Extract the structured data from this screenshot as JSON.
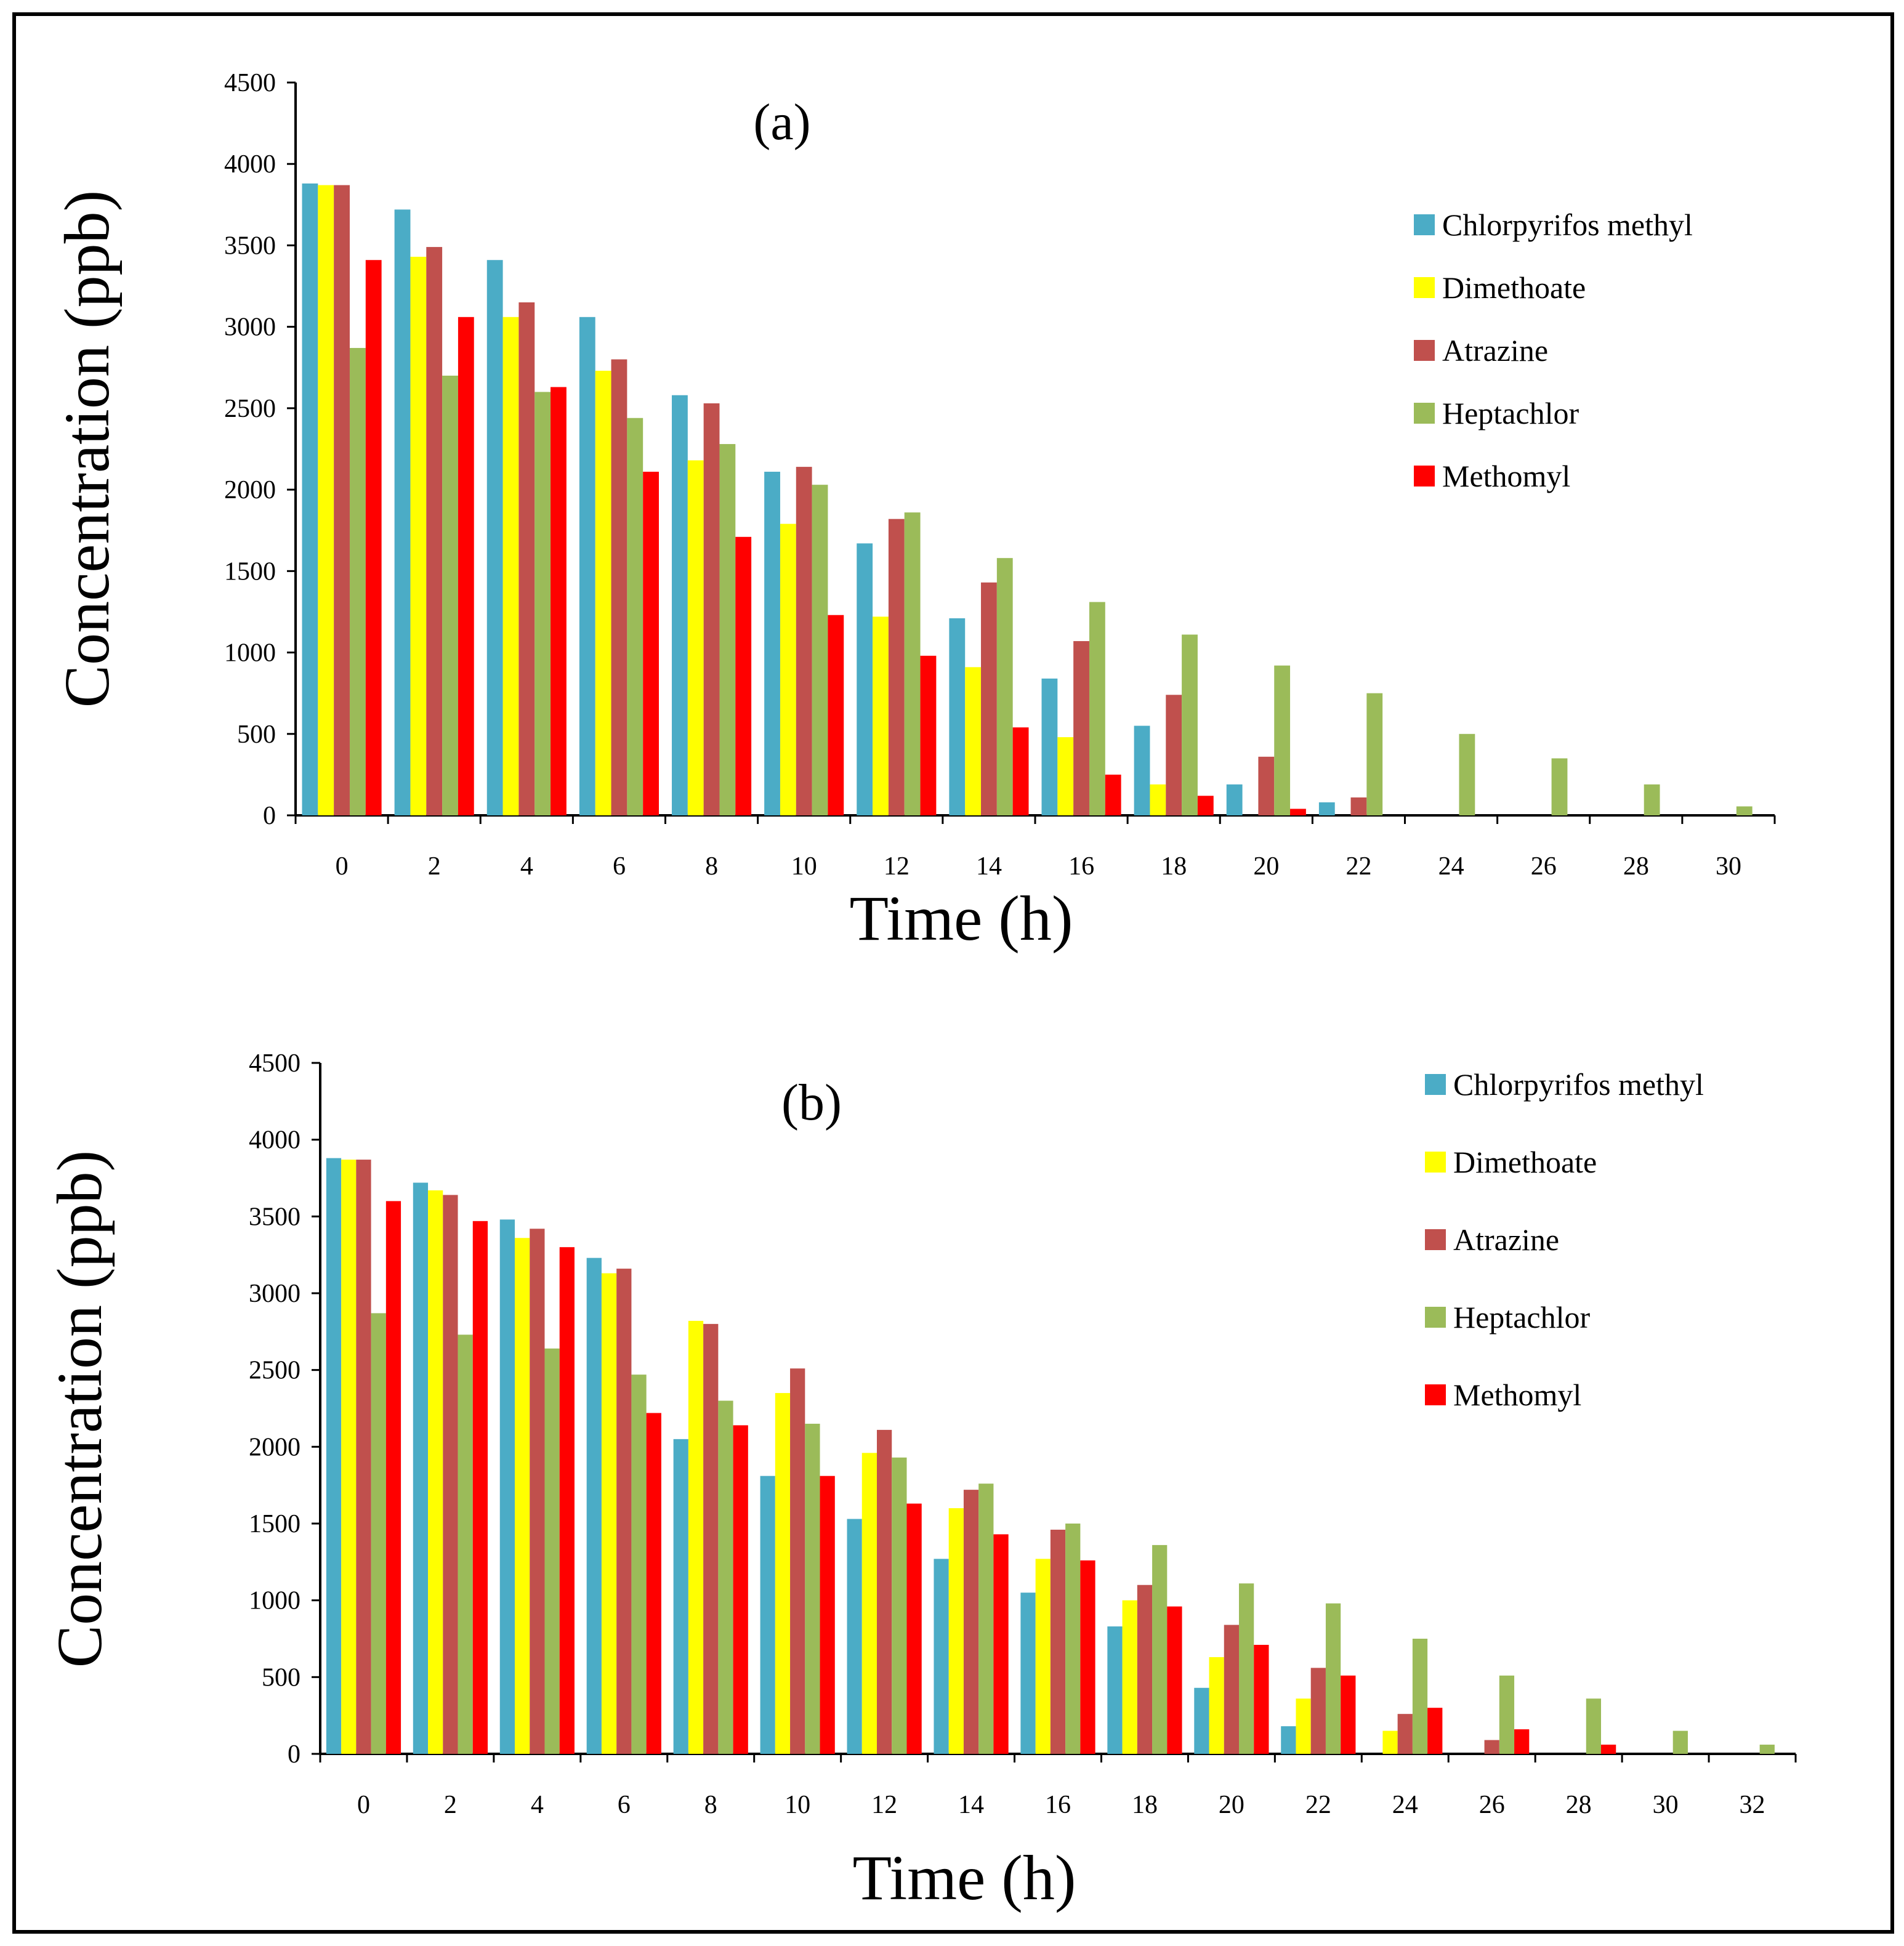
{
  "chart_data": [
    {
      "type": "bar",
      "title": "(a)",
      "xlabel": "Time (h)",
      "ylabel": "Concentration (ppb)",
      "ylim": [
        0,
        4500
      ],
      "yticks": [
        "0",
        "500",
        "1000",
        "1500",
        "2000",
        "2500",
        "3000",
        "3500",
        "4000",
        "4500"
      ],
      "categories": [
        "0",
        "2",
        "4",
        "6",
        "8",
        "10",
        "12",
        "14",
        "16",
        "18",
        "20",
        "22",
        "24",
        "26",
        "28",
        "30"
      ],
      "legend_position": "right",
      "series": [
        {
          "name": "Chlorpyrifos methyl",
          "color": "#4BACC6",
          "values": [
            3880,
            3720,
            3410,
            3060,
            2580,
            2110,
            1670,
            1210,
            840,
            550,
            190,
            80,
            0,
            0,
            0,
            0
          ]
        },
        {
          "name": "Dimethoate",
          "color": "#FFFF00",
          "values": [
            3870,
            3430,
            3060,
            2730,
            2180,
            1790,
            1220,
            910,
            480,
            190,
            0,
            0,
            0,
            0,
            0,
            0
          ]
        },
        {
          "name": "Atrazine",
          "color": "#C0504D",
          "values": [
            3870,
            3490,
            3150,
            2800,
            2530,
            2140,
            1820,
            1430,
            1070,
            740,
            360,
            110,
            0,
            0,
            0,
            0
          ]
        },
        {
          "name": "Heptachlor",
          "color": "#9BBB59",
          "values": [
            2870,
            2700,
            2600,
            2440,
            2280,
            2030,
            1860,
            1580,
            1310,
            1110,
            920,
            750,
            500,
            350,
            190,
            55
          ]
        },
        {
          "name": "Methomyl",
          "color": "#FF0000",
          "values": [
            3410,
            3060,
            2630,
            2110,
            1710,
            1230,
            980,
            540,
            250,
            120,
            40,
            0,
            0,
            0,
            0,
            0
          ]
        }
      ]
    },
    {
      "type": "bar",
      "title": "(b)",
      "xlabel": "Time (h)",
      "ylabel": "Concentration (ppb)",
      "ylim": [
        0,
        4500
      ],
      "yticks": [
        "0",
        "500",
        "1000",
        "1500",
        "2000",
        "2500",
        "3000",
        "3500",
        "4000",
        "4500"
      ],
      "categories": [
        "0",
        "2",
        "4",
        "6",
        "8",
        "10",
        "12",
        "14",
        "16",
        "18",
        "20",
        "22",
        "24",
        "26",
        "28",
        "30",
        "32"
      ],
      "legend_position": "right",
      "series": [
        {
          "name": "Chlorpyrifos methyl",
          "color": "#4BACC6",
          "values": [
            3880,
            3720,
            3480,
            3230,
            2050,
            1810,
            1530,
            1270,
            1050,
            830,
            430,
            180,
            0,
            0,
            0,
            0,
            0
          ]
        },
        {
          "name": "Dimethoate",
          "color": "#FFFF00",
          "values": [
            3870,
            3670,
            3360,
            3130,
            2820,
            2350,
            1960,
            1600,
            1270,
            1000,
            630,
            360,
            150,
            0,
            0,
            0,
            0
          ]
        },
        {
          "name": "Atrazine",
          "color": "#C0504D",
          "values": [
            3870,
            3640,
            3420,
            3160,
            2800,
            2510,
            2110,
            1720,
            1460,
            1100,
            840,
            560,
            260,
            90,
            0,
            0,
            0
          ]
        },
        {
          "name": "Heptachlor",
          "color": "#9BBB59",
          "values": [
            2870,
            2730,
            2640,
            2470,
            2300,
            2150,
            1930,
            1760,
            1500,
            1360,
            1110,
            980,
            750,
            510,
            360,
            150,
            60
          ]
        },
        {
          "name": "Methomyl",
          "color": "#FF0000",
          "values": [
            3600,
            3470,
            3300,
            2220,
            2140,
            1810,
            1630,
            1430,
            1260,
            960,
            710,
            510,
            300,
            160,
            60,
            0,
            0
          ]
        }
      ]
    }
  ]
}
